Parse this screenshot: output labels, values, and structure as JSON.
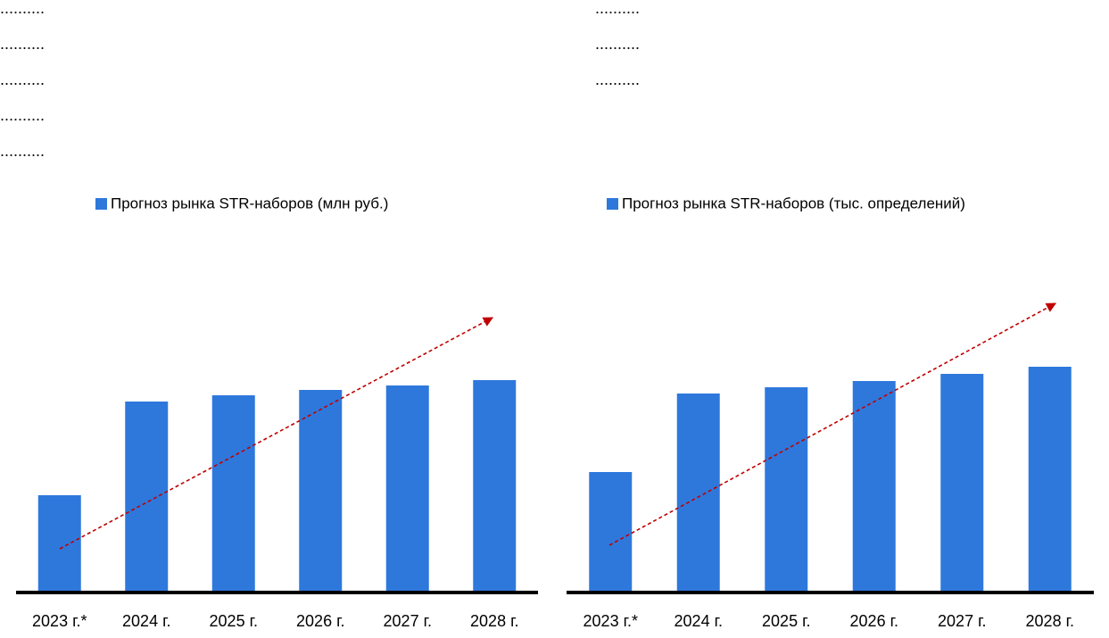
{
  "placeholder_text": {
    "left": [
      "..........",
      "..........",
      "..........",
      "..........",
      ".........."
    ],
    "right": [
      "..........",
      "..........",
      ".........."
    ]
  },
  "chart_data": [
    {
      "type": "bar",
      "categories": [
        "2023 г.*",
        "2024 г.",
        "2025 г.",
        "2026 г.",
        "2027 г.",
        "2028 г."
      ],
      "series": [
        {
          "name": "Прогноз рынка STR-наборов (млн руб.)",
          "color": "#2e78dc",
          "values": [
            109,
            214,
            221,
            227,
            232,
            238
          ]
        }
      ],
      "ylim": [
        0,
        404
      ]
    },
    {
      "type": "bar",
      "categories": [
        "2023 г.*",
        "2024 г.",
        "2025 г.",
        "2026 г.",
        "2027 г.",
        "2028 г."
      ],
      "series": [
        {
          "name": "Прогноз рынка STR-наборов (тыс. определений)",
          "color": "#2e78dc",
          "values": [
            135,
            223,
            230,
            237,
            245,
            253
          ]
        }
      ],
      "ylim": [
        0,
        404
      ]
    }
  ]
}
